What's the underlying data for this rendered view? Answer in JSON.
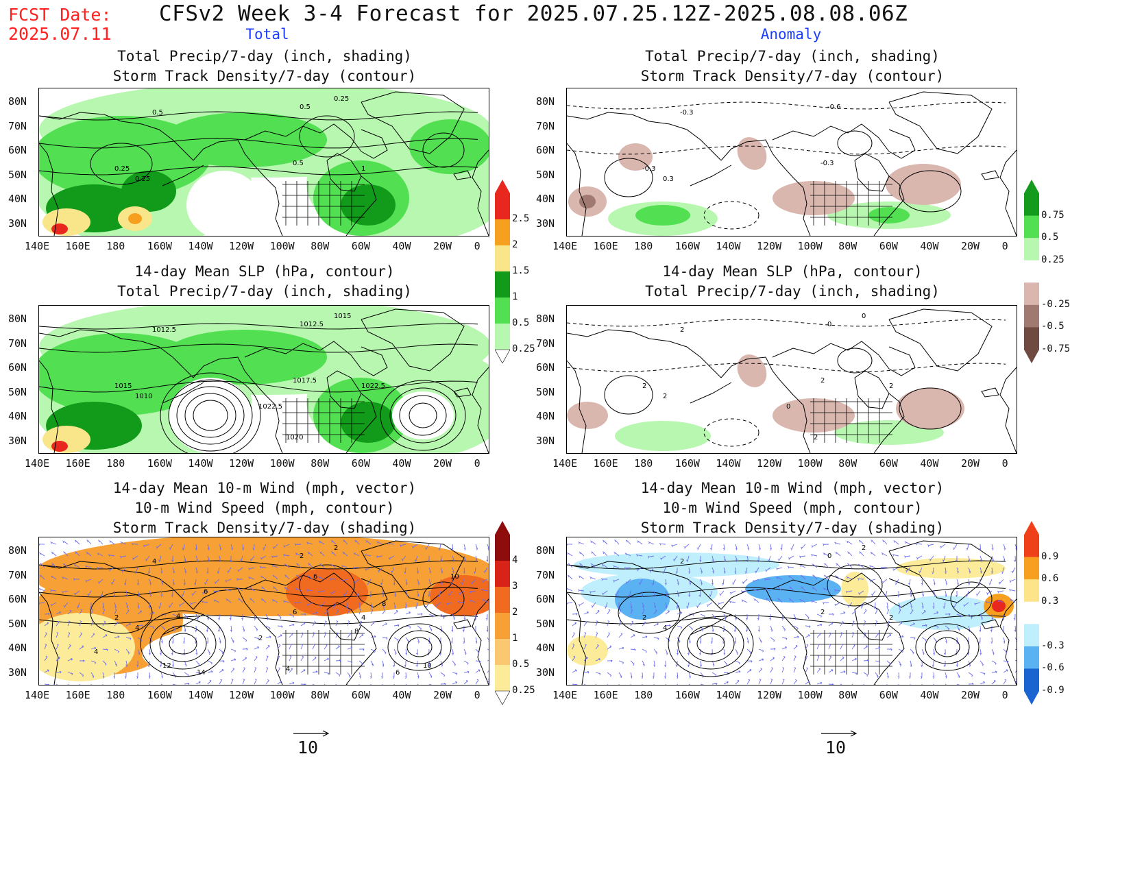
{
  "fcst_date": {
    "label": "FCST Date:",
    "value": "2025.07.11"
  },
  "main_title": "CFSv2 Week 3-4 Forecast for 2025.07.25.12Z-2025.08.08.06Z",
  "column_labels": {
    "left": "Total",
    "right": "Anomaly"
  },
  "lat_labels": [
    "80N",
    "70N",
    "60N",
    "50N",
    "40N",
    "30N"
  ],
  "lon_labels": [
    "140E",
    "160E",
    "180",
    "160W",
    "140W",
    "120W",
    "100W",
    "80W",
    "60W",
    "40W",
    "20W",
    "0"
  ],
  "panels": [
    {
      "id": "total-precip-storm",
      "titles": [
        "Total Precip/7-day (inch, shading)",
        "Storm Track Density/7-day (contour)"
      ],
      "contour_labels": [
        "0.5",
        "0.5",
        "0.25",
        "0.5",
        "0.25",
        "0.25",
        "1"
      ]
    },
    {
      "id": "anom-precip-storm",
      "titles": [
        "Total Precip/7-day (inch, shading)",
        "Storm Track Density/7-day (contour)"
      ],
      "contour_labels": [
        "-0.3",
        "-0.6",
        "-0.3",
        "-0.3",
        "0.3"
      ]
    },
    {
      "id": "total-slp-precip",
      "titles": [
        "14-day Mean SLP (hPa, contour)",
        "Total Precip/7-day (inch, shading)"
      ],
      "contour_labels": [
        "1012.5",
        "1012.5",
        "1015",
        "1017.5",
        "1010",
        "1015",
        "1022.5",
        "1022.5",
        "1020"
      ]
    },
    {
      "id": "anom-slp-precip",
      "titles": [
        "14-day Mean SLP (hPa, contour)",
        "Total Precip/7-day (inch, shading)"
      ],
      "contour_labels": [
        "2",
        "0",
        "2",
        "2",
        "2",
        "0",
        "2",
        "0",
        "2"
      ]
    },
    {
      "id": "total-wind-storm",
      "titles": [
        "14-day Mean 10-m Wind (mph, vector)",
        "10-m Wind Speed (mph, contour)",
        "Storm Track Density/7-day (shading)"
      ],
      "contour_labels": [
        "4",
        "2",
        "2",
        "6",
        "4",
        "2",
        "4",
        "2",
        "4",
        "6",
        "6",
        "4",
        "8",
        "10",
        "12",
        "14",
        "10",
        "8",
        "6",
        "4"
      ]
    },
    {
      "id": "anom-wind-storm",
      "titles": [
        "14-day Mean 10-m Wind (mph, vector)",
        "10-m Wind Speed (mph, contour)",
        "Storm Track Density/7-day (shading)"
      ],
      "contour_labels": [
        "2",
        "0",
        "2",
        "2",
        "4",
        "2",
        "2"
      ]
    }
  ],
  "colorbars": {
    "precip_total": {
      "labels": [
        "2.5",
        "2",
        "1.5",
        "1",
        "0.5",
        "0.25"
      ],
      "colors": [
        "#e8281e",
        "#f7a020",
        "#f9e68a",
        "#129a1a",
        "#52e052",
        "#b8f7b0"
      ]
    },
    "precip_anom": {
      "labels": [
        "0.75",
        "0.5",
        "0.25",
        "-0.25",
        "-0.5",
        "-0.75"
      ],
      "colors": [
        "#149a1c",
        "#52e052",
        "#b8f7b0",
        "#ffffff",
        "#d9b6ae",
        "#a07a70",
        "#6e4a40"
      ]
    },
    "storm_total": {
      "labels": [
        "4",
        "3",
        "2",
        "1",
        "0.5",
        "0.25"
      ],
      "colors": [
        "#8e0c0c",
        "#d82418",
        "#f06a20",
        "#f7a035",
        "#fac870",
        "#fcec9a"
      ]
    },
    "storm_anom": {
      "labels": [
        "0.9",
        "0.6",
        "0.3",
        "-0.3",
        "-0.6",
        "-0.9"
      ],
      "colors": [
        "#f0401a",
        "#f7a020",
        "#fde38a",
        "#ffffff",
        "#bfeefc",
        "#5ab2f2",
        "#1a64d2"
      ]
    }
  },
  "reference_vector": {
    "value": "10"
  },
  "colors": {
    "precip_light": "#b8f7b0",
    "precip_mid": "#52e052",
    "precip_dark": "#129a1a",
    "dry_light": "#d9b6ae",
    "dry_dark": "#a07a70",
    "storm_orange": "#f7a035",
    "storm_yellow": "#fcec9a",
    "anom_blue": "#5ab2f2",
    "anom_cyan": "#bfeefc",
    "vector": "#6a6cf0"
  }
}
